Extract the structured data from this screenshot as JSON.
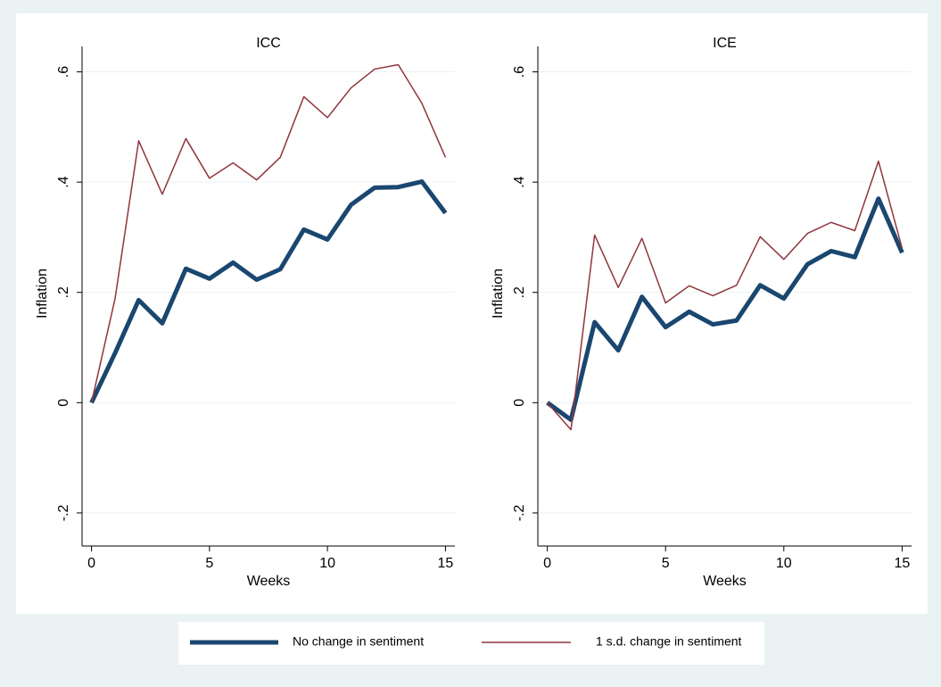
{
  "chart_data": [
    {
      "type": "line",
      "title": "ICC",
      "x_label": "Weeks",
      "y_label": "Inflation",
      "x": [
        0,
        1,
        2,
        3,
        4,
        5,
        6,
        7,
        8,
        9,
        10,
        11,
        12,
        13,
        14,
        15
      ],
      "series": [
        {
          "name": "No change in sentiment",
          "color": "#1a476f",
          "values": [
            0,
            0.09,
            0.186,
            0.144,
            0.243,
            0.225,
            0.254,
            0.223,
            0.242,
            0.314,
            0.296,
            0.359,
            0.39,
            0.391,
            0.401,
            0.344
          ]
        },
        {
          "name": "1 s.d. change in sentiment",
          "color": "#90353b",
          "values": [
            0,
            0.189,
            0.475,
            0.378,
            0.479,
            0.407,
            0.435,
            0.404,
            0.445,
            0.555,
            0.517,
            0.571,
            0.605,
            0.613,
            0.543,
            0.445
          ]
        }
      ],
      "xlim": [
        -0.4,
        15.4
      ],
      "xticks": [
        0,
        5,
        10,
        15
      ],
      "ylim": [
        -0.26,
        0.63
      ],
      "yticks": [
        {
          "value": -0.2,
          "label": "-.2"
        },
        0,
        {
          "value": 0.2,
          "label": ".2"
        },
        {
          "value": 0.4,
          "label": ".4"
        },
        {
          "value": 0.6,
          "label": ".6"
        }
      ],
      "grid": true
    },
    {
      "type": "line",
      "title": "ICE",
      "x_label": "Weeks",
      "y_label": "Inflation",
      "x": [
        0,
        1,
        2,
        3,
        4,
        5,
        6,
        7,
        8,
        9,
        10,
        11,
        12,
        13,
        14,
        15
      ],
      "series": [
        {
          "name": "No change in sentiment",
          "color": "#1a476f",
          "values": [
            0,
            -0.031,
            0.146,
            0.095,
            0.192,
            0.137,
            0.165,
            0.142,
            0.149,
            0.213,
            0.189,
            0.251,
            0.275,
            0.264,
            0.37,
            0.272
          ]
        },
        {
          "name": "1 s.d. change in sentiment",
          "color": "#90353b",
          "values": [
            0,
            -0.049,
            0.304,
            0.209,
            0.298,
            0.181,
            0.212,
            0.194,
            0.213,
            0.301,
            0.26,
            0.307,
            0.327,
            0.312,
            0.438,
            0.28
          ]
        }
      ],
      "xlim": [
        -0.4,
        15.4
      ],
      "xticks": [
        0,
        5,
        10,
        15
      ],
      "ylim": [
        -0.26,
        0.63
      ],
      "yticks": [
        {
          "value": -0.2,
          "label": "-.2"
        },
        0,
        {
          "value": 0.2,
          "label": ".2"
        },
        {
          "value": 0.4,
          "label": ".4"
        },
        {
          "value": 0.6,
          "label": ".6"
        }
      ],
      "grid": true
    }
  ]
}
